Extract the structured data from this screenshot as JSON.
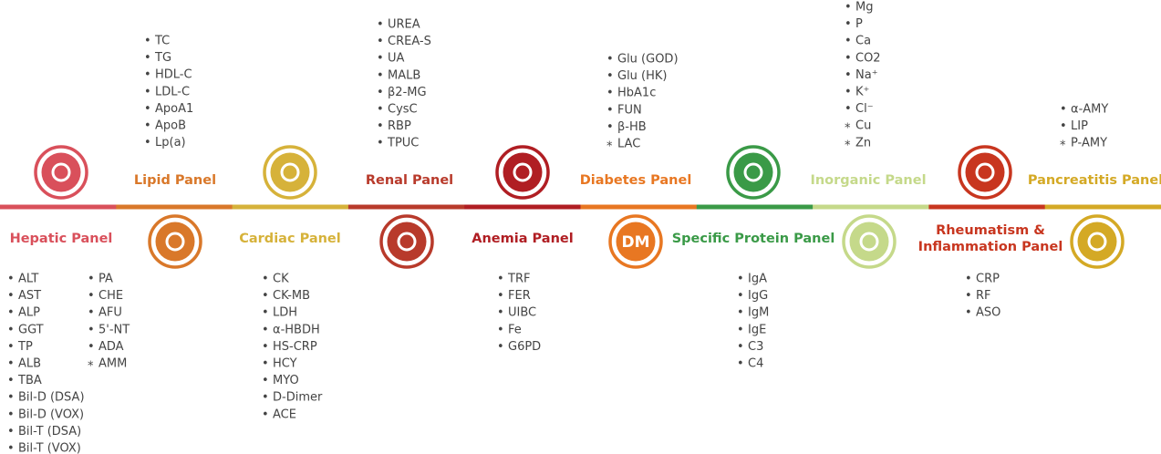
{
  "panels": [
    {
      "title": [
        "Hepatic Panel"
      ],
      "color": "#d9505b",
      "items": [
        {
          "marker": "•",
          "label": "ALT"
        },
        {
          "marker": "•",
          "label": "AST"
        },
        {
          "marker": "•",
          "label": "ALP"
        },
        {
          "marker": "•",
          "label": "GGT"
        },
        {
          "marker": "•",
          "label": "TP"
        },
        {
          "marker": "•",
          "label": "ALB"
        },
        {
          "marker": "•",
          "label": "TBA"
        },
        {
          "marker": "•",
          "label": "Bil-D (DSA)"
        },
        {
          "marker": "•",
          "label": "Bil-D (VOX)"
        },
        {
          "marker": "•",
          "label": "Bil-T (DSA)"
        },
        {
          "marker": "•",
          "label": "Bil-T (VOX)"
        },
        {
          "marker": "•",
          "label": "PA"
        },
        {
          "marker": "•",
          "label": "CHE"
        },
        {
          "marker": "•",
          "label": "AFU"
        },
        {
          "marker": "•",
          "label": "5'-NT"
        },
        {
          "marker": "•",
          "label": "ADA"
        },
        {
          "marker": "*",
          "label": "AMM"
        }
      ]
    },
    {
      "title": [
        "Lipid Panel"
      ],
      "color": "#d9782a",
      "items": [
        {
          "marker": "•",
          "label": "TC"
        },
        {
          "marker": "•",
          "label": "TG"
        },
        {
          "marker": "•",
          "label": "HDL-C"
        },
        {
          "marker": "•",
          "label": "LDL-C"
        },
        {
          "marker": "•",
          "label": "ApoA1"
        },
        {
          "marker": "•",
          "label": "ApoB"
        },
        {
          "marker": "•",
          "label": "Lp(a)"
        }
      ]
    },
    {
      "title": [
        "Cardiac Panel"
      ],
      "color": "#d6b23a",
      "items": [
        {
          "marker": "•",
          "label": "CK"
        },
        {
          "marker": "•",
          "label": "CK-MB"
        },
        {
          "marker": "•",
          "label": "LDH"
        },
        {
          "marker": "•",
          "label": "α-HBDH"
        },
        {
          "marker": "•",
          "label": "HS-CRP"
        },
        {
          "marker": "•",
          "label": "HCY"
        },
        {
          "marker": "•",
          "label": "MYO"
        },
        {
          "marker": "•",
          "label": "D-Dimer"
        },
        {
          "marker": "•",
          "label": "ACE"
        }
      ]
    },
    {
      "title": [
        "Renal Panel"
      ],
      "color": "#b83a2b",
      "items": [
        {
          "marker": "•",
          "label": "UREA"
        },
        {
          "marker": "•",
          "label": "CREA-S"
        },
        {
          "marker": "•",
          "label": "UA"
        },
        {
          "marker": "•",
          "label": "MALB"
        },
        {
          "marker": "•",
          "label": "β2-MG"
        },
        {
          "marker": "•",
          "label": "CysC"
        },
        {
          "marker": "•",
          "label": "RBP"
        },
        {
          "marker": "•",
          "label": "TPUC"
        }
      ]
    },
    {
      "title": [
        "Anemia Panel"
      ],
      "color": "#b01e23",
      "items": [
        {
          "marker": "•",
          "label": "TRF"
        },
        {
          "marker": "•",
          "label": "FER"
        },
        {
          "marker": "•",
          "label": "UIBC"
        },
        {
          "marker": "•",
          "label": "Fe"
        },
        {
          "marker": "•",
          "label": "G6PD"
        }
      ]
    },
    {
      "title": [
        "Diabetes Panel"
      ],
      "color": "#e87722",
      "icon_text": "DM",
      "items": [
        {
          "marker": "•",
          "label": "Glu (GOD)"
        },
        {
          "marker": "•",
          "label": "Glu (HK)"
        },
        {
          "marker": "•",
          "label": "HbA1c"
        },
        {
          "marker": "•",
          "label": "FUN"
        },
        {
          "marker": "•",
          "label": "β-HB"
        },
        {
          "marker": "*",
          "label": "LAC"
        }
      ]
    },
    {
      "title": [
        "Specific Protein Panel"
      ],
      "color": "#3a9a47",
      "items": [
        {
          "marker": "•",
          "label": "IgA"
        },
        {
          "marker": "•",
          "label": "IgG"
        },
        {
          "marker": "•",
          "label": "IgM"
        },
        {
          "marker": "•",
          "label": "IgE"
        },
        {
          "marker": "•",
          "label": "C3"
        },
        {
          "marker": "•",
          "label": "C4"
        }
      ]
    },
    {
      "title": [
        "Inorganic Panel"
      ],
      "color": "#c5d98a",
      "items": [
        {
          "marker": "•",
          "label": "Mg"
        },
        {
          "marker": "•",
          "label": "P"
        },
        {
          "marker": "•",
          "label": "Ca"
        },
        {
          "marker": "•",
          "label": "CO2"
        },
        {
          "marker": "•",
          "label": "Na⁺"
        },
        {
          "marker": "•",
          "label": "K⁺"
        },
        {
          "marker": "•",
          "label": "Cl⁻"
        },
        {
          "marker": "*",
          "label": "Cu"
        },
        {
          "marker": "*",
          "label": "Zn"
        }
      ]
    },
    {
      "title": [
        "Rheumatism &",
        "Inflammation Panel"
      ],
      "color": "#c8361f",
      "items": [
        {
          "marker": "•",
          "label": "CRP"
        },
        {
          "marker": "•",
          "label": "RF"
        },
        {
          "marker": "•",
          "label": "ASO"
        }
      ]
    },
    {
      "title": [
        "Pancreatitis Panel"
      ],
      "color": "#d4a925",
      "items": [
        {
          "marker": "•",
          "label": "α-AMY"
        },
        {
          "marker": "•",
          "label": "LIP"
        },
        {
          "marker": "*",
          "label": "P-AMY"
        }
      ]
    }
  ]
}
